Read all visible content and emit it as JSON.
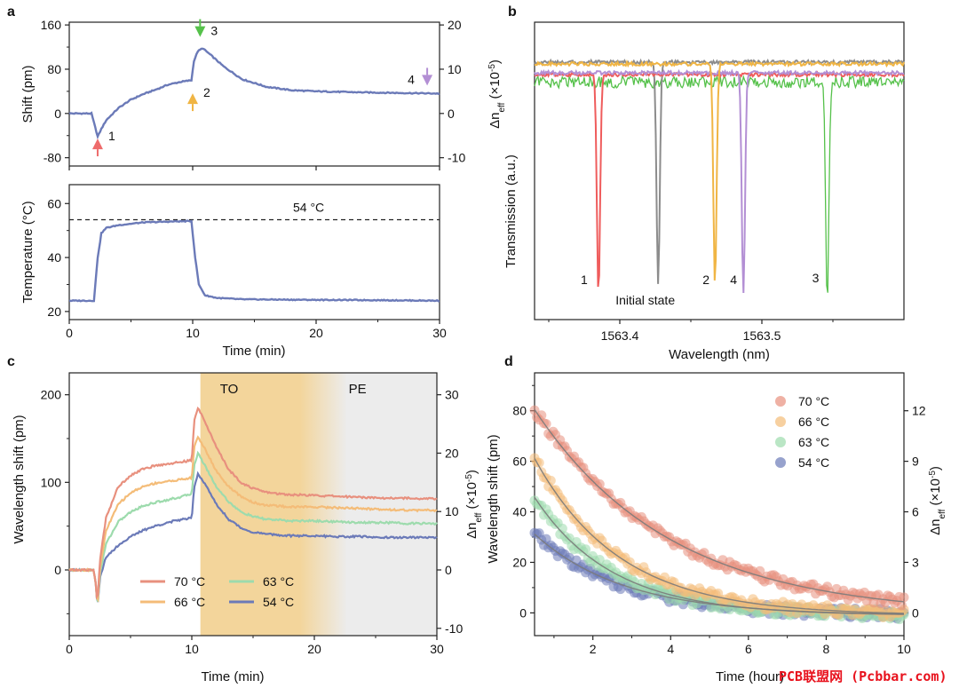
{
  "figure": {
    "watermark": "PCB联盟网 (Pcbbar.com)"
  },
  "chart_data": [
    {
      "panel": "a",
      "part": "top",
      "type": "line",
      "ylabel": "Shift (pm)",
      "ylabel_right": "Δn_eff (×10^-5)",
      "xlim": [
        0,
        30
      ],
      "ylim": [
        -95,
        165
      ],
      "yticks": [
        -80,
        0,
        80,
        160
      ],
      "yticks_right": [
        -10,
        0,
        10,
        20
      ],
      "series": [
        {
          "name": "shift",
          "color": "#6b7ab8",
          "x": [
            0,
            1.8,
            2.1,
            2.3,
            2.6,
            3,
            4,
            5,
            6,
            7,
            8,
            9,
            9.9,
            10.1,
            10.4,
            10.8,
            11.5,
            12.5,
            14,
            16,
            18,
            20,
            24,
            27,
            30
          ],
          "y": [
            0,
            0,
            -25,
            -42,
            -28,
            -12,
            10,
            25,
            35,
            43,
            52,
            57,
            60,
            95,
            112,
            118,
            105,
            85,
            62,
            48,
            42,
            40,
            38,
            37,
            36
          ]
        }
      ],
      "annotations": [
        {
          "text": "1",
          "x": 2.3,
          "y": -55,
          "color": "#ee6b6b"
        },
        {
          "text": "2",
          "x": 10,
          "y": 30,
          "color": "#f0b544"
        },
        {
          "text": "3",
          "x": 10.6,
          "y": 148,
          "color": "#55c14a"
        },
        {
          "text": "4",
          "x": 29,
          "y": 60,
          "color": "#b38fd4"
        }
      ]
    },
    {
      "panel": "a",
      "part": "bottom",
      "type": "line",
      "xlabel": "Time (min)",
      "ylabel": "Temperature (°C)",
      "xlim": [
        0,
        30
      ],
      "ylim": [
        17,
        67
      ],
      "xticks": [
        0,
        10,
        20,
        30
      ],
      "yticks": [
        20,
        40,
        60
      ],
      "reference_line": {
        "y": 54,
        "label": "54 °C"
      },
      "series": [
        {
          "name": "temperature",
          "color": "#6b7ab8",
          "x": [
            0,
            2,
            2.3,
            2.6,
            3,
            4,
            5,
            6,
            8,
            9.9,
            10.2,
            10.5,
            11,
            12,
            14,
            20,
            25,
            30
          ],
          "y": [
            24,
            24,
            40,
            49,
            51,
            52,
            52.5,
            53,
            53.3,
            53.5,
            40,
            30,
            26,
            25,
            24.5,
            24.3,
            24.2,
            24
          ]
        }
      ]
    },
    {
      "panel": "b",
      "type": "line",
      "xlabel": "Wavelength (nm)",
      "ylabel": "Transmission (a.u.)",
      "xlim": [
        1563.34,
        1563.6
      ],
      "xticks": [
        1563.4,
        1563.5
      ],
      "series": [
        {
          "name": "1",
          "color": "#ef5c5c",
          "center": 1563.385
        },
        {
          "name": "Initial state",
          "color": "#8c8c8c",
          "center": 1563.427
        },
        {
          "name": "2",
          "color": "#f0b544",
          "center": 1563.467
        },
        {
          "name": "4",
          "color": "#b38fd4",
          "center": 1563.487
        },
        {
          "name": "3",
          "color": "#55c14a",
          "center": 1563.546
        }
      ]
    },
    {
      "panel": "c",
      "type": "line",
      "xlabel": "Time (min)",
      "ylabel": "Wavelength shift (pm)",
      "ylabel_right": "Δn_eff (×10^-5)",
      "xlim": [
        0,
        30
      ],
      "ylim": [
        -75,
        225
      ],
      "xticks": [
        0,
        10,
        20,
        30
      ],
      "yticks": [
        0,
        100,
        200
      ],
      "yticks_right": [
        -10,
        0,
        10,
        20,
        30
      ],
      "regions": [
        {
          "label": "TO",
          "from": 10.7,
          "to": 18.5,
          "color": "#f3d59b"
        },
        {
          "label": "PE",
          "from": 18.5,
          "to": 30,
          "color": "#ececec"
        }
      ],
      "x": [
        0,
        2,
        2.2,
        2.3,
        2.5,
        3,
        4,
        5,
        6,
        7,
        8,
        9,
        10,
        10.2,
        10.5,
        11,
        12,
        13,
        14,
        15,
        16,
        17,
        18,
        20,
        22,
        24,
        26,
        28,
        30
      ],
      "series": [
        {
          "name": "70 °C",
          "color": "#e8907e",
          "y": [
            0,
            0,
            -20,
            -40,
            10,
            60,
            95,
            108,
            115,
            119,
            121,
            123,
            125,
            170,
            185,
            172,
            140,
            115,
            100,
            93,
            89,
            87,
            86,
            85,
            84,
            83,
            82,
            82,
            81
          ]
        },
        {
          "name": "66 °C",
          "color": "#f4bc78",
          "y": [
            0,
            0,
            -20,
            -42,
            0,
            45,
            75,
            88,
            95,
            99,
            101,
            103,
            105,
            140,
            152,
            140,
            113,
            95,
            84,
            77,
            74,
            73,
            72,
            72,
            71,
            70,
            69,
            68,
            68
          ]
        },
        {
          "name": "63 °C",
          "color": "#9ddbad",
          "y": [
            0,
            0,
            -20,
            -44,
            -5,
            30,
            55,
            66,
            73,
            77,
            80,
            83,
            87,
            120,
            133,
            121,
            95,
            78,
            66,
            61,
            58,
            57,
            56,
            56,
            55,
            54,
            54,
            53,
            53
          ]
        },
        {
          "name": "54 °C",
          "color": "#6b7ab8",
          "y": [
            0,
            0,
            -20,
            -45,
            -10,
            15,
            28,
            38,
            45,
            50,
            54,
            57,
            60,
            95,
            110,
            100,
            75,
            58,
            48,
            43,
            41,
            40,
            39,
            39,
            38,
            38,
            37,
            37,
            37
          ]
        }
      ]
    },
    {
      "panel": "d",
      "type": "scatter",
      "xlabel": "Time (hour)",
      "ylabel": "Wavelength shift (pm)",
      "ylabel_right": "Δn_eff (×10^-5)",
      "xlim": [
        0.5,
        10
      ],
      "ylim": [
        -9,
        95
      ],
      "xticks": [
        2,
        4,
        6,
        8,
        10
      ],
      "yticks": [
        0,
        20,
        40,
        60,
        80
      ],
      "yticks_right": [
        0,
        3,
        6,
        9,
        12
      ],
      "series": [
        {
          "name": "70 °C",
          "color": "#e8907e",
          "fit": {
            "a": 94,
            "tau": 3.5
          }
        },
        {
          "name": "66 °C",
          "color": "#f4bc78",
          "fit": {
            "a": 78,
            "tau": 2.2
          }
        },
        {
          "name": "63 °C",
          "color": "#9ddbad",
          "fit": {
            "a": 60,
            "tau": 2.0
          }
        },
        {
          "name": "54 °C",
          "color": "#6b7ab8",
          "fit": {
            "a": 40,
            "tau": 2.3
          }
        }
      ]
    }
  ]
}
